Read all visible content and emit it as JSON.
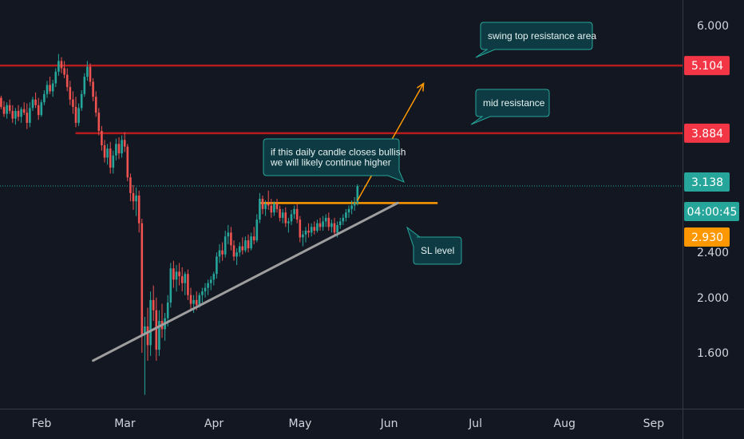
{
  "chart_data": {
    "type": "candlestick",
    "title": "",
    "xlabel": "",
    "ylabel": "",
    "y_scale": "log",
    "ylim": [
      1.3,
      6.8
    ],
    "grid": false,
    "x_ticks": [
      "Feb",
      "Mar",
      "Apr",
      "May",
      "Jun",
      "Jul",
      "Aug",
      "Sep"
    ],
    "y_ticks": [
      "6.000",
      "5.104",
      "3.884",
      "3.138",
      "04:00:45",
      "2.930",
      "2.400",
      "2.000",
      "1.600"
    ],
    "price_tags": [
      {
        "label": "5.104",
        "value": 5.104,
        "color": "#f23645"
      },
      {
        "label": "3.884",
        "value": 3.884,
        "color": "#f23645"
      },
      {
        "label": "3.138",
        "value": 3.138,
        "color": "#26a69a"
      },
      {
        "label": "04:00:45",
        "value": 2.98,
        "color": "#26a69a"
      },
      {
        "label": "2.930",
        "value": 2.93,
        "color": "#ff9800"
      }
    ],
    "horizontal_lines": [
      {
        "value": 5.104,
        "from": "Jan 17",
        "to": "axis",
        "color": "#b71c1c"
      },
      {
        "value": 3.884,
        "from": "Feb 12",
        "to": "axis",
        "color": "#b71c1c"
      },
      {
        "value": 2.93,
        "from": "Apr 16",
        "to": "Jun 17",
        "color": "#ff9800"
      },
      {
        "value": 3.138,
        "from": "Jan 17",
        "to": "axis",
        "color": "#26a69a",
        "style": "dotted"
      }
    ],
    "trend_lines": [
      {
        "from": {
          "x": "Mar 03",
          "y": 1.55
        },
        "to": {
          "x": "Jun 17",
          "y": 2.93
        },
        "color": "#9e9e9e"
      }
    ],
    "arrows": [
      {
        "from": {
          "x": "Jun 03",
          "y": 2.96
        },
        "to": {
          "x": "Jun 26",
          "y": 4.75
        },
        "color": "#ff9800"
      }
    ],
    "annotations": [
      {
        "text": [
          "swing top resistance area"
        ],
        "at": {
          "x": "Jun 28",
          "y": 5.6
        }
      },
      {
        "text": [
          "mid resistance"
        ],
        "at": {
          "x": "Jun 27",
          "y": 4.22
        }
      },
      {
        "text": [
          "if this daily candle closes bullish",
          "we will likely continue higher"
        ],
        "at": {
          "x": "May 18",
          "y": 3.45
        }
      },
      {
        "text": [
          "SL level"
        ],
        "at": {
          "x": "Jun 08",
          "y": 2.38
        }
      }
    ],
    "candles": [
      {
        "date": "Jan 17",
        "o": 4.62,
        "h": 4.98,
        "l": 4.45,
        "c": 4.85
      },
      {
        "date": "Jan 18",
        "o": 4.85,
        "h": 4.92,
        "l": 4.38,
        "c": 4.5
      },
      {
        "date": "Jan 19",
        "o": 4.5,
        "h": 4.62,
        "l": 4.22,
        "c": 4.3
      },
      {
        "date": "Jan 20",
        "o": 4.3,
        "h": 4.55,
        "l": 4.2,
        "c": 4.45
      },
      {
        "date": "Jan 21",
        "o": 4.45,
        "h": 4.6,
        "l": 4.28,
        "c": 4.35
      },
      {
        "date": "Jan 22",
        "o": 4.35,
        "h": 4.58,
        "l": 4.25,
        "c": 4.5
      },
      {
        "date": "Jan 23",
        "o": 4.5,
        "h": 4.6,
        "l": 4.3,
        "c": 4.38
      },
      {
        "date": "Jan 24",
        "o": 4.38,
        "h": 4.45,
        "l": 4.15,
        "c": 4.22
      },
      {
        "date": "Jan 25",
        "o": 4.22,
        "h": 4.5,
        "l": 4.15,
        "c": 4.42
      },
      {
        "date": "Jan 26",
        "o": 4.42,
        "h": 4.55,
        "l": 4.25,
        "c": 4.3
      },
      {
        "date": "Jan 27",
        "o": 4.3,
        "h": 4.45,
        "l": 4.18,
        "c": 4.38
      },
      {
        "date": "Jan 28",
        "o": 4.38,
        "h": 4.5,
        "l": 4.2,
        "c": 4.28
      },
      {
        "date": "Jan 29",
        "o": 4.28,
        "h": 4.42,
        "l": 4.15,
        "c": 4.35
      },
      {
        "date": "Jan 30",
        "o": 4.35,
        "h": 4.55,
        "l": 4.3,
        "c": 4.48
      },
      {
        "date": "Jan 31",
        "o": 4.48,
        "h": 4.52,
        "l": 4.28,
        "c": 4.32
      },
      {
        "date": "Feb 01",
        "o": 4.32,
        "h": 4.42,
        "l": 4.15,
        "c": 4.2
      },
      {
        "date": "Feb 02",
        "o": 4.2,
        "h": 4.4,
        "l": 4.12,
        "c": 4.35
      },
      {
        "date": "Feb 03",
        "o": 4.35,
        "h": 4.45,
        "l": 4.2,
        "c": 4.25
      },
      {
        "date": "Feb 04",
        "o": 4.25,
        "h": 4.35,
        "l": 4.05,
        "c": 4.12
      },
      {
        "date": "Feb 05",
        "o": 4.12,
        "h": 4.3,
        "l": 4.02,
        "c": 4.25
      },
      {
        "date": "Feb 06",
        "o": 4.25,
        "h": 4.35,
        "l": 4.08,
        "c": 4.15
      },
      {
        "date": "Feb 07",
        "o": 4.15,
        "h": 4.32,
        "l": 4.05,
        "c": 4.28
      },
      {
        "date": "Feb 08",
        "o": 4.28,
        "h": 4.4,
        "l": 4.18,
        "c": 4.22
      },
      {
        "date": "Feb 09",
        "o": 4.22,
        "h": 4.38,
        "l": 3.95,
        "c": 4.05
      },
      {
        "date": "Feb 10",
        "o": 4.05,
        "h": 4.4,
        "l": 3.98,
        "c": 4.3
      },
      {
        "date": "Feb 11",
        "o": 4.3,
        "h": 4.5,
        "l": 4.25,
        "c": 4.45
      },
      {
        "date": "Feb 12",
        "o": 4.45,
        "h": 4.58,
        "l": 4.3,
        "c": 4.35
      },
      {
        "date": "Feb 13",
        "o": 4.35,
        "h": 4.48,
        "l": 4.1,
        "c": 4.18
      },
      {
        "date": "Feb 14",
        "o": 4.18,
        "h": 4.45,
        "l": 4.15,
        "c": 4.4
      },
      {
        "date": "Feb 15",
        "o": 4.4,
        "h": 4.62,
        "l": 4.35,
        "c": 4.55
      },
      {
        "date": "Feb 16",
        "o": 4.55,
        "h": 4.8,
        "l": 4.48,
        "c": 4.72
      },
      {
        "date": "Feb 17",
        "o": 4.72,
        "h": 4.88,
        "l": 4.55,
        "c": 4.6
      },
      {
        "date": "Feb 18",
        "o": 4.6,
        "h": 4.82,
        "l": 4.5,
        "c": 4.75
      },
      {
        "date": "Feb 19",
        "o": 4.75,
        "h": 5.05,
        "l": 4.68,
        "c": 4.98
      },
      {
        "date": "Feb 20",
        "o": 4.98,
        "h": 5.35,
        "l": 4.9,
        "c": 5.2
      },
      {
        "date": "Feb 21",
        "o": 5.2,
        "h": 5.28,
        "l": 4.95,
        "c": 5.05
      },
      {
        "date": "Feb 22",
        "o": 5.05,
        "h": 5.2,
        "l": 4.85,
        "c": 4.92
      },
      {
        "date": "Feb 23",
        "o": 4.92,
        "h": 5.05,
        "l": 4.6,
        "c": 4.68
      },
      {
        "date": "Feb 24",
        "o": 4.68,
        "h": 4.8,
        "l": 4.35,
        "c": 4.45
      },
      {
        "date": "Feb 25",
        "o": 4.45,
        "h": 4.6,
        "l": 4.2,
        "c": 4.32
      },
      {
        "date": "Feb 26",
        "o": 4.32,
        "h": 4.5,
        "l": 3.98,
        "c": 4.05
      },
      {
        "date": "Feb 27",
        "o": 4.05,
        "h": 4.38,
        "l": 4.0,
        "c": 4.3
      },
      {
        "date": "Feb 28",
        "o": 4.3,
        "h": 4.62,
        "l": 4.25,
        "c": 4.55
      },
      {
        "date": "Feb 29",
        "o": 4.55,
        "h": 4.95,
        "l": 4.5,
        "c": 4.88
      },
      {
        "date": "Mar 01",
        "o": 4.88,
        "h": 5.2,
        "l": 4.8,
        "c": 5.08
      },
      {
        "date": "Mar 02",
        "o": 5.08,
        "h": 5.15,
        "l": 4.7,
        "c": 4.78
      },
      {
        "date": "Mar 03",
        "o": 4.78,
        "h": 4.85,
        "l": 4.42,
        "c": 4.5
      },
      {
        "date": "Mar 04",
        "o": 4.5,
        "h": 4.6,
        "l": 4.15,
        "c": 4.22
      },
      {
        "date": "Mar 05",
        "o": 4.22,
        "h": 4.3,
        "l": 3.85,
        "c": 3.92
      },
      {
        "date": "Mar 06",
        "o": 3.92,
        "h": 4.0,
        "l": 3.62,
        "c": 3.7
      },
      {
        "date": "Mar 07",
        "o": 3.7,
        "h": 3.78,
        "l": 3.45,
        "c": 3.52
      },
      {
        "date": "Mar 08",
        "o": 3.52,
        "h": 3.72,
        "l": 3.42,
        "c": 3.65
      },
      {
        "date": "Mar 09",
        "o": 3.65,
        "h": 3.75,
        "l": 3.3,
        "c": 3.38
      },
      {
        "date": "Mar 10",
        "o": 3.38,
        "h": 3.62,
        "l": 3.3,
        "c": 3.55
      },
      {
        "date": "Mar 11",
        "o": 3.55,
        "h": 3.8,
        "l": 3.48,
        "c": 3.72
      },
      {
        "date": "Mar 12",
        "o": 3.72,
        "h": 3.82,
        "l": 3.5,
        "c": 3.58
      },
      {
        "date": "Mar 13",
        "o": 3.58,
        "h": 3.85,
        "l": 3.52,
        "c": 3.78
      },
      {
        "date": "Mar 14",
        "o": 3.78,
        "h": 3.9,
        "l": 3.6,
        "c": 3.68
      },
      {
        "date": "Mar 15",
        "o": 3.68,
        "h": 3.72,
        "l": 3.2,
        "c": 3.25
      },
      {
        "date": "Mar 16",
        "o": 3.25,
        "h": 3.3,
        "l": 2.95,
        "c": 3.05
      },
      {
        "date": "Mar 17",
        "o": 3.05,
        "h": 3.15,
        "l": 2.85,
        "c": 2.95
      },
      {
        "date": "Mar 18",
        "o": 2.95,
        "h": 3.12,
        "l": 2.78,
        "c": 3.02
      },
      {
        "date": "Mar 19",
        "o": 3.02,
        "h": 3.08,
        "l": 2.6,
        "c": 2.7
      },
      {
        "date": "Mar 20",
        "o": 2.7,
        "h": 2.75,
        "l": 1.6,
        "c": 1.72
      },
      {
        "date": "Mar 21",
        "o": 1.72,
        "h": 1.85,
        "l": 1.35,
        "c": 1.78
      },
      {
        "date": "Mar 22",
        "o": 1.78,
        "h": 1.92,
        "l": 1.55,
        "c": 1.65
      },
      {
        "date": "Mar 23",
        "o": 1.65,
        "h": 2.05,
        "l": 1.58,
        "c": 1.98
      },
      {
        "date": "Mar 24",
        "o": 1.98,
        "h": 2.1,
        "l": 1.82,
        "c": 1.9
      },
      {
        "date": "Mar 25",
        "o": 1.9,
        "h": 2.0,
        "l": 1.55,
        "c": 1.62
      },
      {
        "date": "Mar 26",
        "o": 1.62,
        "h": 1.9,
        "l": 1.58,
        "c": 1.82
      },
      {
        "date": "Mar 27",
        "o": 1.82,
        "h": 1.95,
        "l": 1.7,
        "c": 1.76
      },
      {
        "date": "Mar 28",
        "o": 1.76,
        "h": 1.88,
        "l": 1.68,
        "c": 1.84
      },
      {
        "date": "Mar 29",
        "o": 1.84,
        "h": 2.02,
        "l": 1.78,
        "c": 1.96
      },
      {
        "date": "Mar 30",
        "o": 1.96,
        "h": 2.3,
        "l": 1.92,
        "c": 2.25
      },
      {
        "date": "Mar 31",
        "o": 2.25,
        "h": 2.32,
        "l": 2.08,
        "c": 2.15
      },
      {
        "date": "Apr 01",
        "o": 2.15,
        "h": 2.28,
        "l": 2.05,
        "c": 2.22
      },
      {
        "date": "Apr 02",
        "o": 2.22,
        "h": 2.3,
        "l": 2.1,
        "c": 2.18
      },
      {
        "date": "Apr 03",
        "o": 2.18,
        "h": 2.26,
        "l": 2.05,
        "c": 2.12
      },
      {
        "date": "Apr 04",
        "o": 2.12,
        "h": 2.22,
        "l": 2.02,
        "c": 2.2
      },
      {
        "date": "Apr 05",
        "o": 2.2,
        "h": 2.24,
        "l": 1.98,
        "c": 2.02
      },
      {
        "date": "Apr 06",
        "o": 2.02,
        "h": 2.08,
        "l": 1.9,
        "c": 1.95
      },
      {
        "date": "Apr 07",
        "o": 1.95,
        "h": 2.02,
        "l": 1.88,
        "c": 1.98
      },
      {
        "date": "Apr 08",
        "o": 1.98,
        "h": 2.05,
        "l": 1.9,
        "c": 1.94
      },
      {
        "date": "Apr 09",
        "o": 1.94,
        "h": 2.04,
        "l": 1.92,
        "c": 2.02
      },
      {
        "date": "Apr 10",
        "o": 2.02,
        "h": 2.08,
        "l": 1.96,
        "c": 2.05
      },
      {
        "date": "Apr 11",
        "o": 2.05,
        "h": 2.12,
        "l": 2.0,
        "c": 2.08
      },
      {
        "date": "Apr 12",
        "o": 2.08,
        "h": 2.15,
        "l": 2.02,
        "c": 2.12
      },
      {
        "date": "Apr 13",
        "o": 2.12,
        "h": 2.18,
        "l": 2.06,
        "c": 2.15
      },
      {
        "date": "Apr 14",
        "o": 2.15,
        "h": 2.22,
        "l": 2.1,
        "c": 2.2
      },
      {
        "date": "Apr 15",
        "o": 2.2,
        "h": 2.4,
        "l": 2.16,
        "c": 2.36
      },
      {
        "date": "Apr 16",
        "o": 2.36,
        "h": 2.48,
        "l": 2.3,
        "c": 2.42
      },
      {
        "date": "Apr 17",
        "o": 2.42,
        "h": 2.5,
        "l": 2.32,
        "c": 2.38
      },
      {
        "date": "Apr 18",
        "o": 2.38,
        "h": 2.62,
        "l": 2.35,
        "c": 2.56
      },
      {
        "date": "Apr 19",
        "o": 2.56,
        "h": 2.68,
        "l": 2.48,
        "c": 2.6
      },
      {
        "date": "Apr 20",
        "o": 2.6,
        "h": 2.66,
        "l": 2.42,
        "c": 2.47
      },
      {
        "date": "Apr 21",
        "o": 2.47,
        "h": 2.52,
        "l": 2.32,
        "c": 2.36
      },
      {
        "date": "Apr 22",
        "o": 2.36,
        "h": 2.44,
        "l": 2.28,
        "c": 2.4
      },
      {
        "date": "Apr 23",
        "o": 2.4,
        "h": 2.5,
        "l": 2.36,
        "c": 2.46
      },
      {
        "date": "Apr 24",
        "o": 2.46,
        "h": 2.55,
        "l": 2.38,
        "c": 2.42
      },
      {
        "date": "Apr 25",
        "o": 2.42,
        "h": 2.56,
        "l": 2.4,
        "c": 2.52
      },
      {
        "date": "Apr 26",
        "o": 2.52,
        "h": 2.58,
        "l": 2.4,
        "c": 2.44
      },
      {
        "date": "Apr 27",
        "o": 2.44,
        "h": 2.6,
        "l": 2.42,
        "c": 2.56
      },
      {
        "date": "Apr 28",
        "o": 2.56,
        "h": 2.66,
        "l": 2.48,
        "c": 2.52
      },
      {
        "date": "Apr 29",
        "o": 2.52,
        "h": 2.8,
        "l": 2.5,
        "c": 2.74
      },
      {
        "date": "Apr 30",
        "o": 2.74,
        "h": 3.05,
        "l": 2.7,
        "c": 2.98
      },
      {
        "date": "May 01",
        "o": 2.98,
        "h": 3.02,
        "l": 2.8,
        "c": 2.86
      },
      {
        "date": "May 02",
        "o": 2.86,
        "h": 2.96,
        "l": 2.78,
        "c": 2.92
      },
      {
        "date": "May 03",
        "o": 2.92,
        "h": 3.08,
        "l": 2.85,
        "c": 2.9
      },
      {
        "date": "May 04",
        "o": 2.9,
        "h": 2.98,
        "l": 2.76,
        "c": 2.82
      },
      {
        "date": "May 05",
        "o": 2.82,
        "h": 2.95,
        "l": 2.78,
        "c": 2.92
      },
      {
        "date": "May 06",
        "o": 2.92,
        "h": 2.98,
        "l": 2.82,
        "c": 2.86
      },
      {
        "date": "May 07",
        "o": 2.86,
        "h": 2.9,
        "l": 2.72,
        "c": 2.76
      },
      {
        "date": "May 08",
        "o": 2.76,
        "h": 2.86,
        "l": 2.7,
        "c": 2.82
      },
      {
        "date": "May 09",
        "o": 2.82,
        "h": 2.88,
        "l": 2.66,
        "c": 2.7
      },
      {
        "date": "May 10",
        "o": 2.7,
        "h": 2.76,
        "l": 2.6,
        "c": 2.72
      },
      {
        "date": "May 11",
        "o": 2.72,
        "h": 2.85,
        "l": 2.68,
        "c": 2.8
      },
      {
        "date": "May 12",
        "o": 2.8,
        "h": 2.9,
        "l": 2.75,
        "c": 2.86
      },
      {
        "date": "May 13",
        "o": 2.86,
        "h": 2.92,
        "l": 2.7,
        "c": 2.74
      },
      {
        "date": "May 14",
        "o": 2.74,
        "h": 2.78,
        "l": 2.5,
        "c": 2.55
      },
      {
        "date": "May 15",
        "o": 2.55,
        "h": 2.62,
        "l": 2.46,
        "c": 2.58
      },
      {
        "date": "May 16",
        "o": 2.58,
        "h": 2.66,
        "l": 2.5,
        "c": 2.62
      },
      {
        "date": "May 17",
        "o": 2.62,
        "h": 2.7,
        "l": 2.55,
        "c": 2.6
      },
      {
        "date": "May 18",
        "o": 2.6,
        "h": 2.7,
        "l": 2.56,
        "c": 2.66
      },
      {
        "date": "May 19",
        "o": 2.66,
        "h": 2.72,
        "l": 2.58,
        "c": 2.62
      },
      {
        "date": "May 20",
        "o": 2.62,
        "h": 2.74,
        "l": 2.6,
        "c": 2.7
      },
      {
        "date": "May 21",
        "o": 2.7,
        "h": 2.76,
        "l": 2.62,
        "c": 2.66
      },
      {
        "date": "May 22",
        "o": 2.66,
        "h": 2.78,
        "l": 2.62,
        "c": 2.72
      },
      {
        "date": "May 23",
        "o": 2.72,
        "h": 2.8,
        "l": 2.66,
        "c": 2.76
      },
      {
        "date": "May 24",
        "o": 2.76,
        "h": 2.82,
        "l": 2.62,
        "c": 2.66
      },
      {
        "date": "May 25",
        "o": 2.66,
        "h": 2.74,
        "l": 2.6,
        "c": 2.7
      },
      {
        "date": "May 26",
        "o": 2.7,
        "h": 2.76,
        "l": 2.56,
        "c": 2.6
      },
      {
        "date": "May 27",
        "o": 2.6,
        "h": 2.72,
        "l": 2.55,
        "c": 2.68
      },
      {
        "date": "May 28",
        "o": 2.68,
        "h": 2.76,
        "l": 2.64,
        "c": 2.72
      },
      {
        "date": "May 29",
        "o": 2.72,
        "h": 2.8,
        "l": 2.68,
        "c": 2.76
      },
      {
        "date": "May 30",
        "o": 2.76,
        "h": 2.86,
        "l": 2.72,
        "c": 2.82
      },
      {
        "date": "May 31",
        "o": 2.82,
        "h": 2.9,
        "l": 2.76,
        "c": 2.86
      },
      {
        "date": "Jun 01",
        "o": 2.86,
        "h": 2.96,
        "l": 2.8,
        "c": 2.9
      },
      {
        "date": "Jun 02",
        "o": 2.9,
        "h": 3.0,
        "l": 2.84,
        "c": 2.93
      },
      {
        "date": "Jun 03",
        "o": 2.93,
        "h": 3.16,
        "l": 2.9,
        "c": 3.138
      }
    ]
  }
}
